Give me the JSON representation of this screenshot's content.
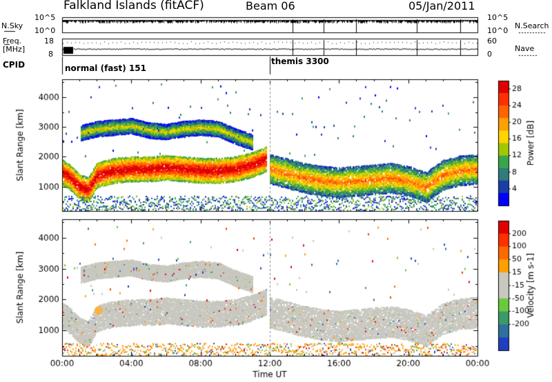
{
  "header": {
    "station": "Falkland Islands (fitACF)",
    "beam": "Beam 06",
    "date": "05/Jan/2011"
  },
  "panels": {
    "nsky_label": "N.Sky",
    "nsky_ticks": [
      "10^5",
      "10^0"
    ],
    "nsearch_label": "N.Search",
    "nsearch_ticks": [
      "10^5",
      "10^0"
    ],
    "freq_label": "Freq.",
    "freq_unit": "[MHz]",
    "freq_ticks": [
      "18",
      "8"
    ],
    "nave_label": "Nave",
    "nave_ticks": [
      "60",
      "0"
    ],
    "cpid_label": "CPID",
    "cpid_modes": [
      {
        "name": "normal (fast) 151",
        "start_hour": 0
      },
      {
        "name": "themis 3300",
        "start_hour": 12
      }
    ]
  },
  "chart_data": [
    {
      "type": "heatmap",
      "title": "",
      "xlabel": "Time UT",
      "ylabel": "Slant Range [km]",
      "x_ticks": [
        "00:00",
        "04:00",
        "08:00",
        "12:00",
        "16:00",
        "20:00",
        "00:00"
      ],
      "xlim_hours": [
        0,
        24
      ],
      "y_ticks": [
        1000,
        2000,
        3000,
        4000
      ],
      "ylim": [
        180,
        4600
      ],
      "colorbar": {
        "label": "Power [dB]",
        "ticks": [
          4,
          8,
          12,
          16,
          20,
          24,
          28
        ],
        "range": [
          0,
          30
        ],
        "colors": [
          "#0000ff",
          "#1a3ea8",
          "#2e7d7a",
          "#3aa64a",
          "#a0c800",
          "#ffd400",
          "#ffa000",
          "#ff6400",
          "#ff3000",
          "#e00000"
        ]
      },
      "echo_bands": [
        {
          "t": [
            0.0,
            0.5,
            1.0,
            1.5,
            2.0,
            3.0,
            4.0,
            5.0,
            6.0,
            7.0,
            8.0,
            9.0,
            10.0,
            11.0,
            11.8
          ],
          "r": [
            1500,
            1300,
            1000,
            900,
            1400,
            1550,
            1600,
            1600,
            1650,
            1600,
            1550,
            1550,
            1600,
            1750,
            1950
          ],
          "strength": "strong"
        },
        {
          "t": [
            12.0,
            13.0,
            14.0,
            15.0,
            16.0,
            17.0,
            18.0,
            19.0,
            20.0,
            21.0,
            22.0,
            23.0,
            24.0
          ],
          "r": [
            1600,
            1450,
            1300,
            1200,
            1150,
            1200,
            1250,
            1300,
            1200,
            1000,
            1400,
            1550,
            1600
          ],
          "strength": "medium"
        },
        {
          "t": [
            1.0,
            2.0,
            3.0,
            4.0,
            5.0,
            6.0,
            7.0,
            8.0,
            9.0,
            10.0,
            11.0
          ],
          "r": [
            2800,
            2950,
            3000,
            3050,
            2900,
            2850,
            2950,
            3000,
            2950,
            2700,
            2500
          ],
          "strength": "weak"
        }
      ]
    },
    {
      "type": "heatmap",
      "title": "",
      "xlabel": "Time UT",
      "ylabel": "Slant Range [km]",
      "x_ticks": [
        "00:00",
        "04:00",
        "08:00",
        "12:00",
        "16:00",
        "20:00",
        "00:00"
      ],
      "xlim_hours": [
        0,
        24
      ],
      "y_ticks": [
        1000,
        2000,
        3000,
        4000
      ],
      "ylim": [
        180,
        4600
      ],
      "colorbar": {
        "label": "Velocity [m s-1]",
        "ticks": [
          200,
          100,
          50,
          15,
          -15,
          -50,
          -100,
          -200
        ],
        "range": [
          -250,
          250
        ],
        "colors": [
          "#1f3fbf",
          "#2f6f9f",
          "#3a9a6a",
          "#6acb3a",
          "#c8c8c0",
          "#c8c8c0",
          "#ff9f00",
          "#ff6a00",
          "#ff3000",
          "#e00000"
        ],
        "ground_scatter_color": "#c8c8c0"
      }
    }
  ]
}
